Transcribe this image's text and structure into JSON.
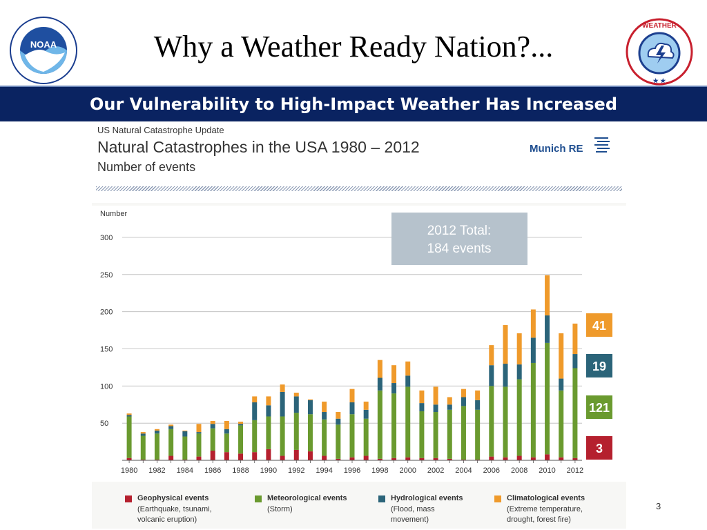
{
  "slide": {
    "title": "Why a Weather Ready Nation?...",
    "banner": "Our Vulnerability to High-Impact Weather Has Increased",
    "page_number": "3",
    "logos": {
      "left": "NOAA",
      "right": "NATIONAL WEATHER SERVICE"
    }
  },
  "figure": {
    "kicker": "US Natural Catastrophe Update",
    "title": "Natural Catastrophes in the USA 1980 – 2012",
    "subtitle": "Number of events",
    "source": "Munich RE",
    "annotation_line1": "2012 Total:",
    "annotation_line2": "184 events"
  },
  "colors": {
    "geophysical": "#b5202e",
    "meteorological": "#6a9a2f",
    "hydrological": "#2b6479",
    "climatological": "#ef9a2b",
    "banner": "#0a2361"
  },
  "legend": [
    {
      "key": "geophysical",
      "name": "Geophysical events",
      "desc1": "(Earthquake, tsunami,",
      "desc2": "volcanic eruption)"
    },
    {
      "key": "meteorological",
      "name": "Meteorological events",
      "desc1": "(Storm)",
      "desc2": ""
    },
    {
      "key": "hydrological",
      "name": "Hydrological events",
      "desc1": "(Flood, mass",
      "desc2": "movement)"
    },
    {
      "key": "climatological",
      "name": "Climatological events",
      "desc1": "(Extreme temperature,",
      "desc2": "drought, forest fire)"
    }
  ],
  "chart_data": {
    "type": "bar",
    "stacked": true,
    "title": "Natural Catastrophes in the USA 1980 – 2012",
    "subtitle": "Number of events",
    "ylabel": "Number",
    "ylim": [
      0,
      300
    ],
    "yticks": [
      50,
      100,
      150,
      200,
      250,
      300
    ],
    "grid": true,
    "legend_position": "bottom",
    "categories": [
      "1980",
      "1981",
      "1982",
      "1983",
      "1984",
      "1985",
      "1986",
      "1987",
      "1988",
      "1989",
      "1990",
      "1991",
      "1992",
      "1993",
      "1994",
      "1995",
      "1996",
      "1997",
      "1998",
      "1999",
      "2000",
      "2001",
      "2002",
      "2003",
      "2004",
      "2005",
      "2006",
      "2007",
      "2008",
      "2009",
      "2010",
      "2011",
      "2012"
    ],
    "xtick_labels": [
      "1980",
      "1982",
      "1984",
      "1986",
      "1988",
      "1990",
      "1992",
      "1994",
      "1996",
      "1998",
      "2000",
      "2002",
      "2004",
      "2006",
      "2008",
      "2010",
      "2012"
    ],
    "series": [
      {
        "name": "Geophysical events",
        "key": "geophysical",
        "values": [
          3,
          1,
          1,
          6,
          1,
          5,
          13,
          11,
          9,
          11,
          15,
          6,
          14,
          12,
          6,
          2,
          4,
          6,
          2,
          3,
          4,
          3,
          3,
          2,
          1,
          1,
          5,
          4,
          6,
          4,
          8,
          4,
          3
        ]
      },
      {
        "name": "Meteorological events",
        "key": "meteorological",
        "values": [
          56,
          32,
          35,
          36,
          31,
          31,
          30,
          25,
          38,
          43,
          44,
          53,
          50,
          50,
          49,
          46,
          58,
          50,
          92,
          87,
          95,
          63,
          62,
          66,
          72,
          67,
          95,
          95,
          103,
          127,
          150,
          90,
          121
        ]
      },
      {
        "name": "Hydrological events",
        "key": "hydrological",
        "values": [
          2,
          3,
          4,
          4,
          7,
          2,
          6,
          6,
          2,
          24,
          15,
          33,
          22,
          19,
          10,
          8,
          16,
          12,
          17,
          14,
          15,
          11,
          10,
          7,
          12,
          13,
          28,
          31,
          20,
          34,
          37,
          16,
          19
        ]
      },
      {
        "name": "Climatological events",
        "key": "climatological",
        "values": [
          2,
          2,
          2,
          2,
          1,
          11,
          4,
          11,
          3,
          8,
          12,
          10,
          5,
          1,
          14,
          9,
          18,
          11,
          24,
          24,
          19,
          17,
          24,
          10,
          11,
          13,
          27,
          52,
          42,
          38,
          54,
          61,
          41
        ]
      }
    ],
    "side_labels": [
      {
        "key": "climatological",
        "value": "41"
      },
      {
        "key": "hydrological",
        "value": "19"
      },
      {
        "key": "meteorological",
        "value": "121"
      },
      {
        "key": "geophysical",
        "value": "3"
      }
    ],
    "annotation": "2012 Total: 184 events"
  }
}
